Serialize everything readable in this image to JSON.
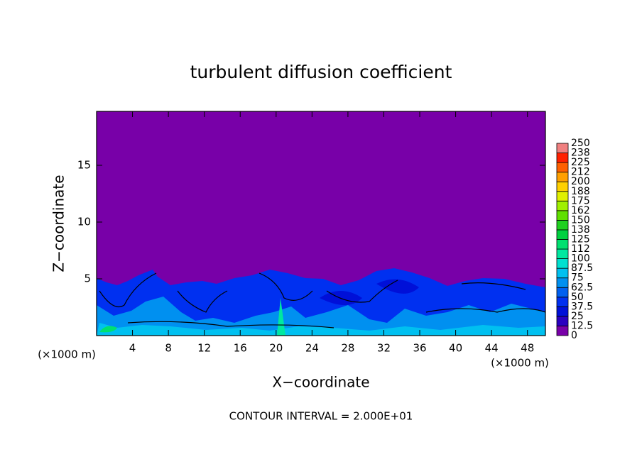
{
  "chart_data": {
    "type": "contour",
    "title": "turbulent diffusion coefficient",
    "xlabel": "X−coordinate",
    "ylabel": "Z−coordinate",
    "x_unit_labels": [
      "(×1000 m)",
      "(×1000 m)"
    ],
    "annotation": "CONTOUR INTERVAL = 2.000E+01",
    "xlim": [
      0,
      50
    ],
    "xticks": [
      4,
      8,
      12,
      16,
      20,
      24,
      28,
      32,
      36,
      40,
      44,
      48
    ],
    "ylim": [
      0,
      19.75
    ],
    "yticks": [
      5,
      10,
      15
    ],
    "colorbar": {
      "levels": [
        0,
        12.5,
        25,
        37.5,
        50,
        62.5,
        75,
        87.5,
        100,
        {
          "value": 112.5,
          "label": "112"
        },
        125,
        {
          "value": 137.5,
          "label": "138"
        },
        150,
        {
          "value": 162.5,
          "label": "162"
        },
        175,
        {
          "value": 187.5,
          "label": "188"
        },
        200,
        {
          "value": 212.5,
          "label": "212"
        },
        225,
        {
          "value": 237.5,
          "label": "238"
        },
        250
      ],
      "colors": [
        "#7800a8",
        "#2a00c0",
        "#0010d8",
        "#0030f0",
        "#0060f0",
        "#0090f0",
        "#00c0f0",
        "#00e0d0",
        "#00e8a0",
        "#00e070",
        "#00d040",
        "#20d020",
        "#60e000",
        "#a0f000",
        "#e0f000",
        "#ffd000",
        "#ffa000",
        "#ff6000",
        "#ff2000",
        "#f08080"
      ]
    }
  }
}
